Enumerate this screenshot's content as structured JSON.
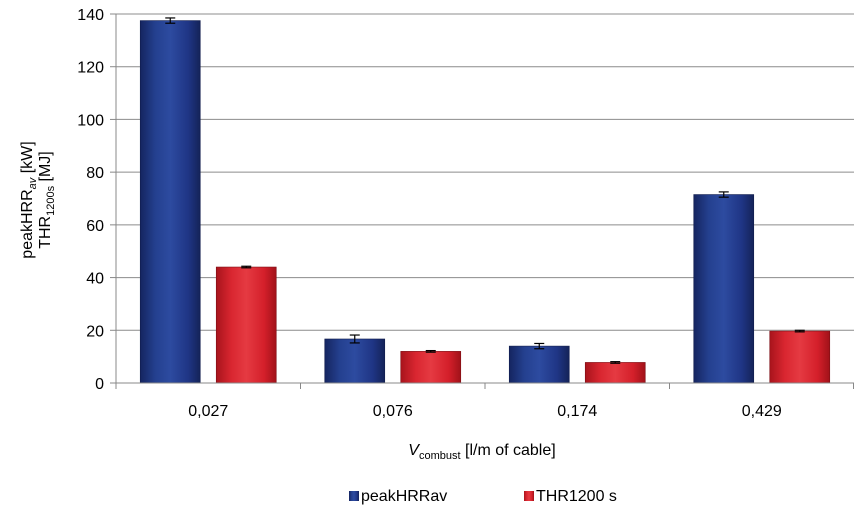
{
  "chart_data": {
    "type": "bar",
    "categories": [
      "0,027",
      "0,076",
      "0,174",
      "0,429"
    ],
    "series": [
      {
        "name": "peakHRRav",
        "values": [
          137.5,
          16.7,
          14.0,
          71.5
        ],
        "errors": [
          1.0,
          1.5,
          1.0,
          1.0
        ],
        "color": "#1F3585"
      },
      {
        "name": "THR1200 s",
        "values": [
          44.0,
          12.0,
          7.8,
          19.7
        ],
        "errors": [
          0.3,
          0.3,
          0.3,
          0.3
        ],
        "color": "#D41F2A"
      }
    ],
    "ylim": [
      0,
      140
    ],
    "yticks": [
      "0",
      "20",
      "40",
      "60",
      "80",
      "100",
      "120",
      "140"
    ],
    "xlabel": {
      "main": "V",
      "subscript": "combust",
      "rest": " [l/m of cable]"
    },
    "ylabel": {
      "line1_main": "peakHRR",
      "line1_sub": "av",
      "line1_rest": " [kW]",
      "line2_main": "THR",
      "line2_sub": "1200s",
      "line2_rest": " [MJ]"
    },
    "grid": true,
    "legend_position": "bottom"
  }
}
